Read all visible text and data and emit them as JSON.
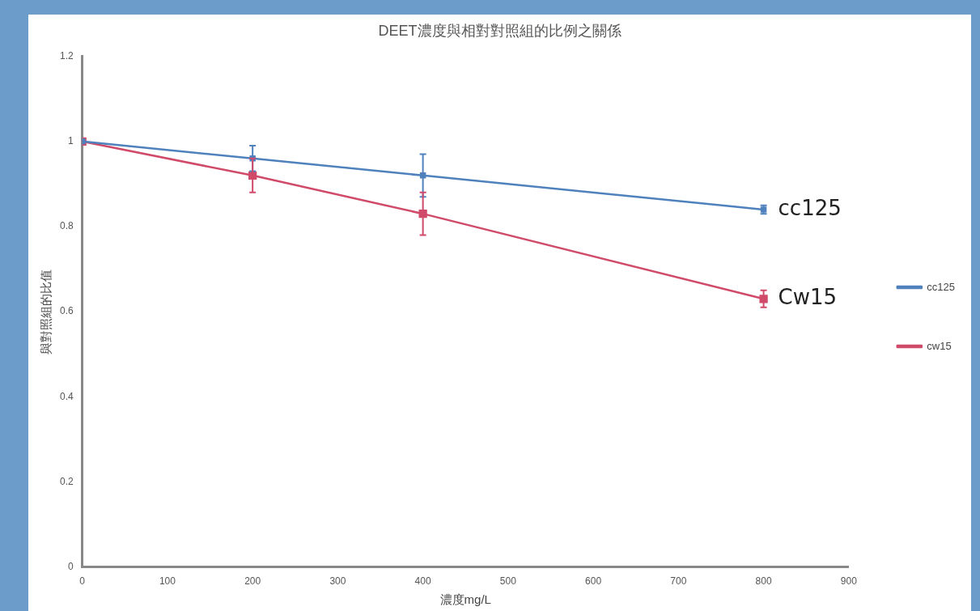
{
  "chart_data": {
    "type": "line",
    "title": "DEET濃度與相對對照組的比例之關係",
    "xlabel": "濃度mg/L",
    "ylabel": "與對照組的比值",
    "x": [
      0,
      200,
      400,
      800
    ],
    "series": [
      {
        "name": "cc125",
        "color": "#4f81bd",
        "values": [
          1,
          0.96,
          0.92,
          0.84
        ],
        "errors": [
          null,
          0.03,
          0.05,
          0.01
        ]
      },
      {
        "name": "cw15",
        "color": "#d04a6a",
        "values": [
          1,
          0.92,
          0.83,
          0.63
        ],
        "errors": [
          null,
          0.04,
          0.05,
          0.02
        ]
      }
    ],
    "xlim": [
      0,
      900
    ],
    "xticks": [
      0,
      100,
      200,
      300,
      400,
      500,
      600,
      700,
      800,
      900
    ],
    "ylim": [
      0,
      1.2
    ],
    "yticks": [
      0,
      0.2,
      0.4,
      0.6,
      0.8,
      1,
      1.2
    ],
    "annotations": [
      {
        "text": "cc125",
        "x": 800,
        "y": 0.84
      },
      {
        "text": "Cw15",
        "x": 800,
        "y": 0.63
      }
    ],
    "grid": false,
    "legend": "right",
    "marker": "square",
    "line_style": "solid"
  }
}
